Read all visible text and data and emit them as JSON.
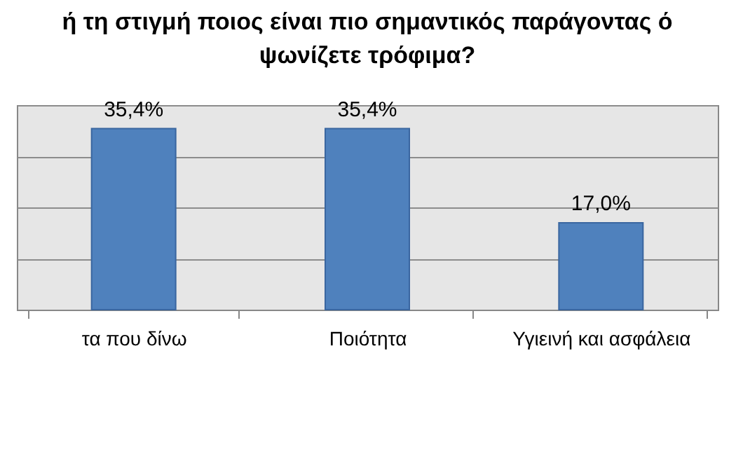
{
  "chart_data": {
    "type": "bar",
    "title": [
      "ή τη στιγμή ποιος είναι πιο σημαντικός παράγοντας ό",
      "ψωνίζετε τρόφιμα?"
    ],
    "categories": [
      "τα που δίνω",
      "Ποιότητα",
      "Υγιεινή και ασφάλεια"
    ],
    "values": [
      35.4,
      35.4,
      17.0
    ],
    "value_labels": [
      "35,4%",
      "35,4%",
      "17,0%"
    ],
    "color": "#4f81bd",
    "ylim": [
      0,
      40
    ],
    "yticks": [
      {
        "value": 0,
        "label": null
      },
      {
        "value": 10,
        "label": null
      },
      {
        "value": 20,
        "label": null
      },
      {
        "value": 30,
        "label": null
      },
      {
        "value": 40,
        "label": null
      }
    ],
    "tick_labels": "x",
    "grid": true
  }
}
